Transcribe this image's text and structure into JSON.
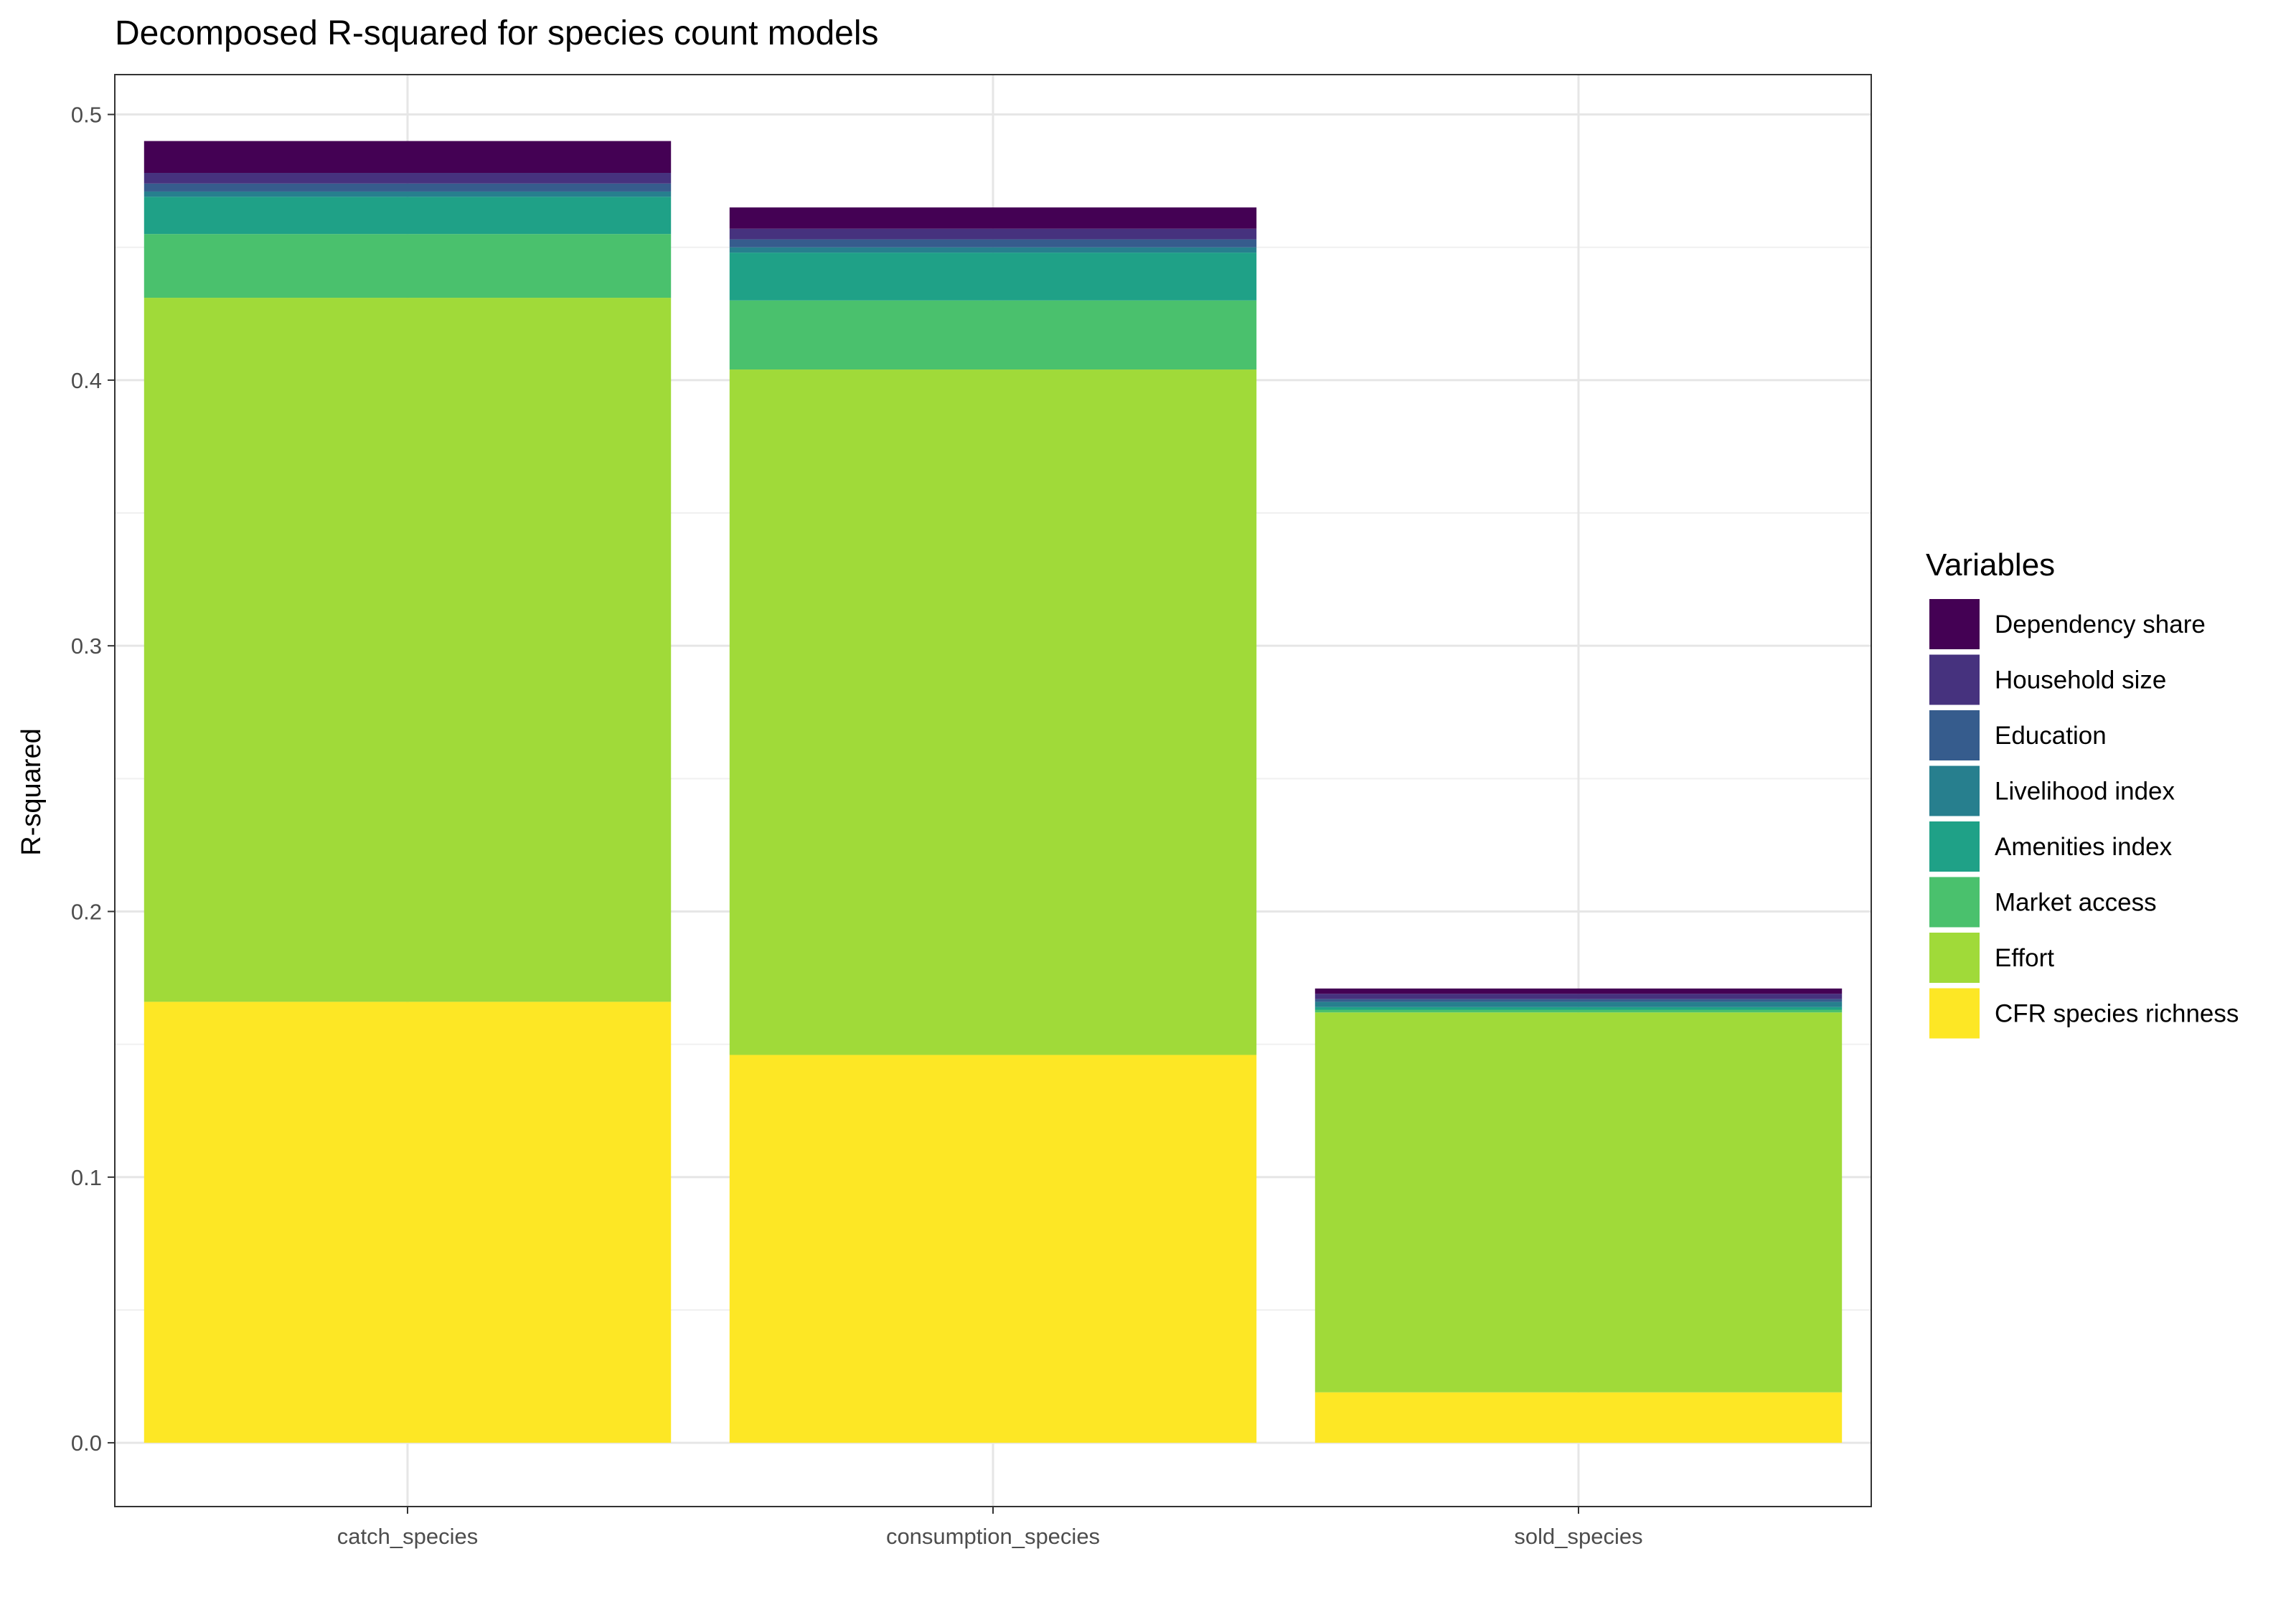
{
  "chart_data": {
    "type": "bar",
    "stacked": true,
    "title": "Decomposed R-squared for species count models",
    "xlabel": "",
    "ylabel": "R-squared",
    "ylim": [
      -0.024,
      0.515
    ],
    "yticks": [
      "0.0",
      "0.1",
      "0.2",
      "0.3",
      "0.4",
      "0.5"
    ],
    "grid": true,
    "legend_position": "right",
    "legend_title": "Variables",
    "categories": [
      "catch_species",
      "consumption_species",
      "sold_species"
    ],
    "series": [
      {
        "name": "CFR species richness",
        "color": "#FDE725",
        "values": [
          0.166,
          0.146,
          0.019
        ]
      },
      {
        "name": "Effort",
        "color": "#A0DA39",
        "values": [
          0.265,
          0.258,
          0.143
        ]
      },
      {
        "name": "Market access",
        "color": "#4AC16D",
        "values": [
          0.024,
          0.026,
          0.001
        ]
      },
      {
        "name": "Amenities index",
        "color": "#1FA187",
        "values": [
          0.014,
          0.018,
          0.001
        ]
      },
      {
        "name": "Livelihood index",
        "color": "#277F8E",
        "values": [
          0.002,
          0.002,
          0.002
        ]
      },
      {
        "name": "Education",
        "color": "#365C8D",
        "values": [
          0.003,
          0.003,
          0.001
        ]
      },
      {
        "name": "Household size",
        "color": "#46327E",
        "values": [
          0.004,
          0.004,
          0.002
        ]
      },
      {
        "name": "Dependency share",
        "color": "#440154",
        "values": [
          0.012,
          0.008,
          0.002
        ]
      }
    ],
    "legend_order": [
      "Dependency share",
      "Household size",
      "Education",
      "Livelihood index",
      "Amenities index",
      "Market access",
      "Effort",
      "CFR species richness"
    ]
  }
}
